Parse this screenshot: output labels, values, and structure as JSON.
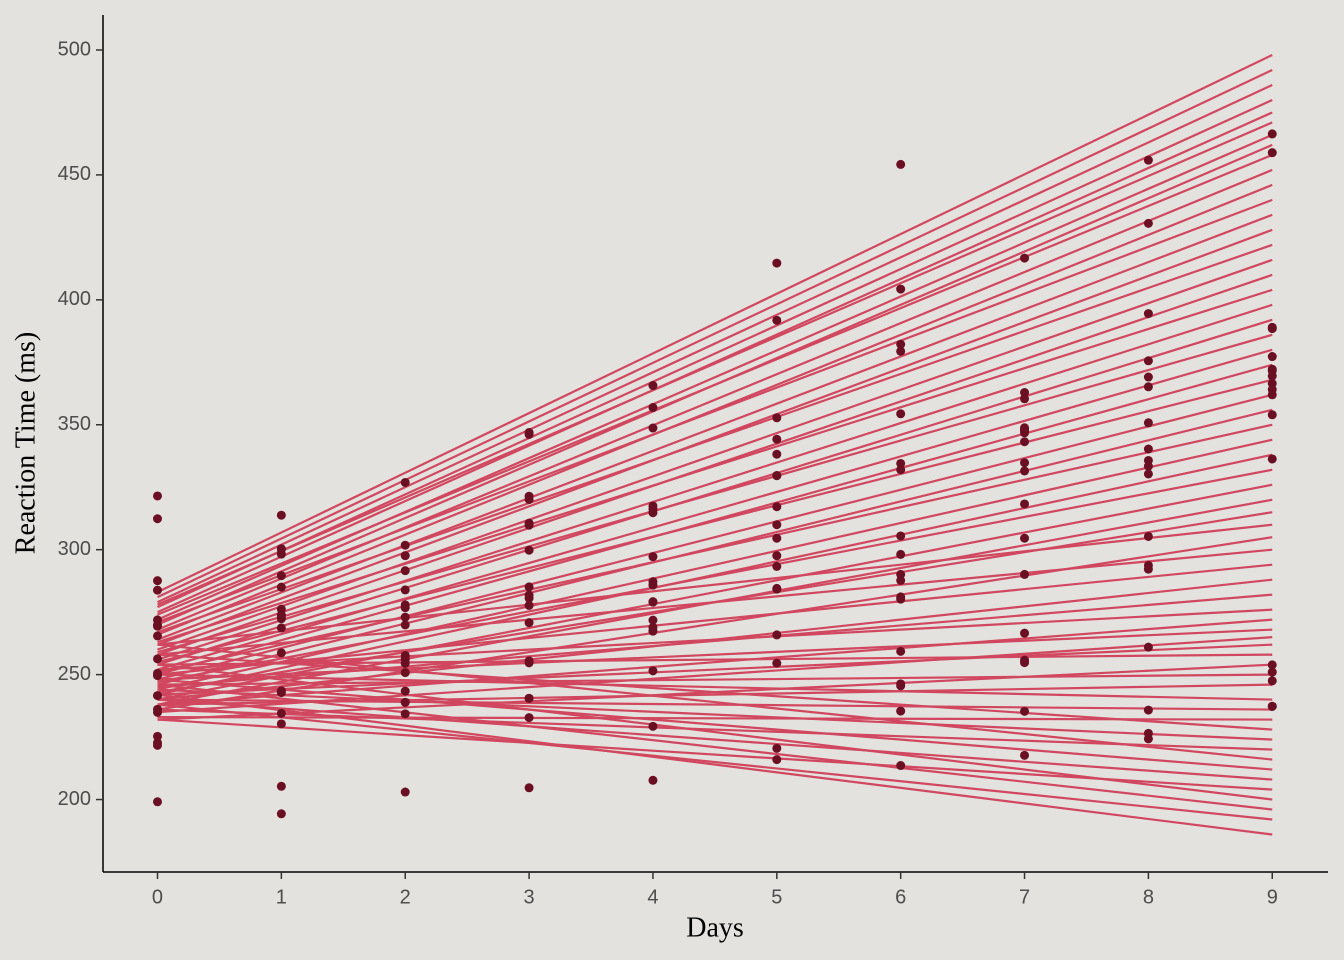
{
  "chart_data": {
    "type": "scatter",
    "x_label": "Days",
    "y_label": "Reaction Time (ms)",
    "xlim": [
      -0.44,
      9.45
    ],
    "ylim": [
      171,
      514
    ],
    "xticks": [
      0,
      1,
      2,
      3,
      4,
      5,
      6,
      7,
      8,
      9
    ],
    "yticks": [
      200,
      250,
      300,
      350,
      400,
      450,
      500
    ],
    "background": "#e3e2de",
    "point_color": "#6b0f23",
    "line_color": "#d1475f",
    "points": {
      "x": [
        0,
        1,
        2,
        3,
        4,
        5,
        6,
        7,
        8,
        9
      ],
      "series": [
        {
          "values": [
            249.6,
            258.7,
            250.8,
            321.4,
            356.9,
            414.7,
            382.2,
            290.1,
            430.6,
            466.4
          ]
        },
        {
          "values": [
            222.7,
            205.3,
            203.0,
            204.7,
            207.7,
            216.0,
            213.6,
            217.7,
            224.3,
            237.3
          ]
        },
        {
          "values": [
            199.1,
            194.3,
            234.3,
            232.8,
            229.3,
            220.5,
            235.4,
            255.8,
            261.0,
            247.5
          ]
        },
        {
          "values": [
            321.5,
            300.4,
            283.9,
            285.1,
            285.8,
            297.6,
            280.2,
            318.3,
            305.3,
            354.0
          ]
        },
        {
          "values": [
            287.6,
            285.0,
            301.8,
            320.1,
            316.3,
            293.3,
            290.1,
            334.8,
            293.7,
            371.6
          ]
        },
        {
          "values": [
            234.9,
            242.8,
            273.0,
            309.8,
            317.5,
            310.0,
            454.2,
            346.8,
            330.3,
            253.9
          ]
        },
        {
          "values": [
            283.8,
            289.6,
            276.8,
            299.8,
            297.2,
            338.2,
            332.0,
            348.8,
            333.4,
            362.0
          ]
        },
        {
          "values": [
            265.5,
            276.2,
            243.4,
            254.7,
            279.0,
            284.2,
            305.5,
            331.5,
            335.7,
            377.3
          ]
        },
        {
          "values": [
            241.6,
            273.9,
            254.5,
            270.8,
            251.5,
            254.6,
            245.5,
            235.3,
            235.8,
            237.3
          ]
        },
        {
          "values": [
            312.4,
            313.8,
            291.6,
            346.1,
            365.7,
            391.8,
            404.3,
            416.7,
            455.9,
            458.9
          ]
        },
        {
          "values": [
            236.1,
            230.3,
            238.9,
            240.5,
            267.4,
            344.2,
            281.1,
            347.6,
            365.2,
            372.2
          ]
        },
        {
          "values": [
            256.3,
            243.5,
            256.2,
            255.5,
            268.9,
            329.7,
            379.4,
            362.9,
            394.5,
            389.0
          ]
        },
        {
          "values": [
            250.5,
            300.1,
            269.9,
            280.6,
            271.8,
            304.6,
            287.7,
            266.6,
            292.2,
            336.3
          ]
        },
        {
          "values": [
            221.7,
            298.2,
            326.9,
            346.9,
            348.7,
            352.8,
            354.4,
            360.4,
            375.6,
            388.5
          ]
        },
        {
          "values": [
            271.9,
            268.7,
            257.7,
            277.7,
            314.8,
            317.2,
            298.1,
            348.1,
            340.3,
            366.5
          ]
        },
        {
          "values": [
            225.3,
            234.5,
            238.9,
            240.5,
            267.5,
            265.9,
            246.3,
            254.8,
            226.5,
            251.0
          ]
        },
        {
          "values": [
            269.9,
            272.4,
            277.9,
            281.8,
            279.2,
            284.5,
            259.3,
            304.6,
            350.8,
            369.5
          ]
        },
        {
          "values": [
            269.4,
            273.5,
            297.6,
            310.6,
            287.2,
            329.6,
            334.5,
            343.2,
            369.1,
            364.1
          ]
        }
      ]
    },
    "fits": {
      "x": [
        0,
        9
      ],
      "values": [
        [
          283,
          498
        ],
        [
          281,
          492
        ],
        [
          279,
          486
        ],
        [
          277,
          480
        ],
        [
          275,
          475
        ],
        [
          278,
          471
        ],
        [
          272,
          466
        ],
        [
          270,
          462
        ],
        [
          274,
          458
        ],
        [
          268,
          452
        ],
        [
          266,
          446
        ],
        [
          271,
          440
        ],
        [
          264,
          434
        ],
        [
          262,
          428
        ],
        [
          267,
          422
        ],
        [
          260,
          416
        ],
        [
          258,
          410
        ],
        [
          263,
          404
        ],
        [
          256,
          398
        ],
        [
          254,
          392
        ],
        [
          259,
          386
        ],
        [
          252,
          380
        ],
        [
          250,
          374
        ],
        [
          255,
          368
        ],
        [
          248,
          362
        ],
        [
          246,
          356
        ],
        [
          251,
          350
        ],
        [
          244,
          344
        ],
        [
          242,
          338
        ],
        [
          247,
          332
        ],
        [
          240,
          326
        ],
        [
          238,
          320
        ],
        [
          243,
          315
        ],
        [
          262,
          310
        ],
        [
          236,
          305
        ],
        [
          258,
          300
        ],
        [
          250,
          294
        ],
        [
          240,
          288
        ],
        [
          245,
          282
        ],
        [
          252,
          276
        ],
        [
          238,
          272
        ],
        [
          248,
          268
        ],
        [
          235,
          265
        ],
        [
          242,
          262
        ],
        [
          254,
          258
        ],
        [
          232,
          254
        ],
        [
          246,
          250
        ],
        [
          238,
          246
        ],
        [
          250,
          240
        ],
        [
          240,
          236
        ],
        [
          233,
          232
        ],
        [
          258,
          228
        ],
        [
          244,
          224
        ],
        [
          236,
          220
        ],
        [
          262,
          216
        ],
        [
          248,
          212
        ],
        [
          240,
          208
        ],
        [
          232,
          204
        ],
        [
          254,
          200
        ],
        [
          246,
          196
        ],
        [
          238,
          192
        ],
        [
          242,
          186
        ]
      ]
    }
  }
}
